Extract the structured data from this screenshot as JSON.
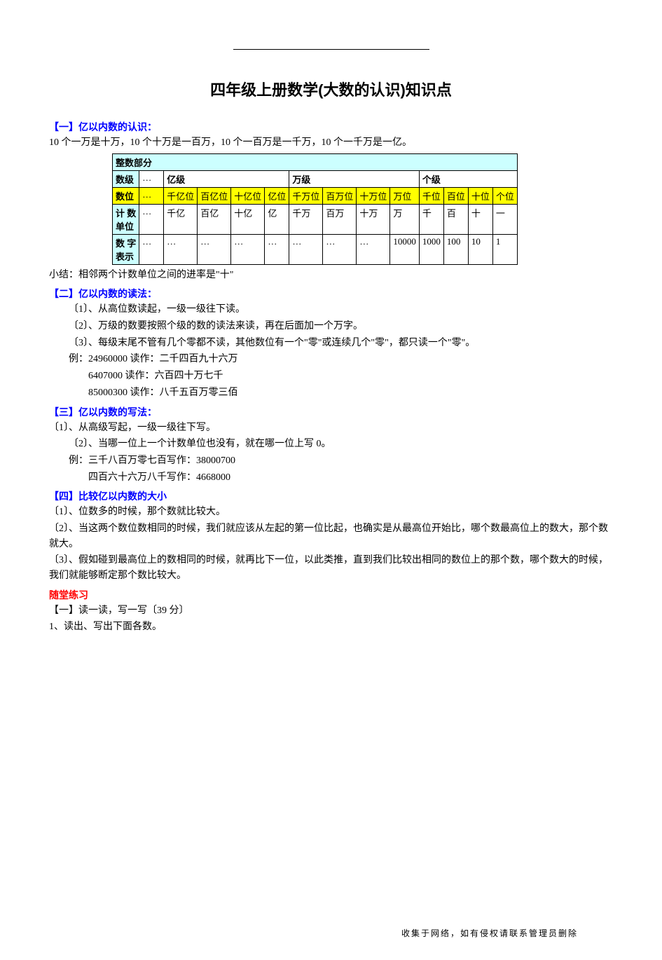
{
  "title": "四年级上册数学(大数的认识)知识点",
  "s1": {
    "head": "【一】亿以内数的认识：",
    "intro": "10 个一万是十万，10 个十万是一百万，10 个一百万是一千万，10 个一千万是一亿。",
    "table": {
      "top_header": "整数部分",
      "row1_label": "数级",
      "row1_yi": "亿级",
      "row1_wan": "万级",
      "row1_ge": "个级",
      "row2_label": "数位",
      "row2_cells": [
        "千亿位",
        "百亿位",
        "十亿位",
        "亿位",
        "千万位",
        "百万位",
        "十万位",
        "万位",
        "千位",
        "百位",
        "十位",
        "个位"
      ],
      "row3_label": "计 数\n单位",
      "row3_cells": [
        "千亿",
        "百亿",
        "十亿",
        "亿",
        "千万",
        "百万",
        "十万",
        "万",
        "千",
        "百",
        "十",
        "一"
      ],
      "row4_label": "数 字\n表示",
      "row4_cells": [
        "…",
        "…",
        "…",
        "…",
        "…",
        "…",
        "…",
        "10000",
        "1000",
        "100",
        "10",
        "1"
      ],
      "ellipsis": "…"
    },
    "summary": "小结：相邻两个计数单位之间的进率是\"十\""
  },
  "s2": {
    "head": "【二】亿以内数的读法：",
    "l1": "〔1〕、从高位数读起，一级一级往下读。",
    "l2": "〔2〕、万级的数要按照个级的数的读法来读，再在后面加一个万字。",
    "l3": "〔3〕、每级末尾不管有几个零都不读，其他数位有一个\"零\"或连续几个\"零\"，都只读一个\"零\"。",
    "ex_label": "例：",
    "ex1": "24960000 读作：二千四百九十六万",
    "ex2": "6407000 读作：六百四十万七千",
    "ex3": "85000300 读作：八千五百万零三佰"
  },
  "s3": {
    "head": "【三】亿以内数的写法：",
    "l1": "〔1〕、从高级写起，一级一级往下写。",
    "l2": "〔2〕、当哪一位上一个计数单位也没有，就在哪一位上写 0。",
    "ex_label": "例：",
    "ex1": "三千八百万零七百写作：38000700",
    "ex2": "四百六十六万八千写作：4668000"
  },
  "s4": {
    "head": "【四】比较亿以内数的大小",
    "l1": "〔1〕、位数多的时候，那个数就比较大。",
    "l2": "〔2〕、当这两个数位数相同的时候，我们就应该从左起的第一位比起，也确实是从最高位开始比，哪个数最高位上的数大，那个数就大。",
    "l3": "〔3〕、假如碰到最高位上的数相同的时候，就再比下一位，以此类推，直到我们比较出相同的数位上的那个数，哪个数大的时候，我们就能够断定那个数比较大。"
  },
  "practice": {
    "head": "随堂练习",
    "l1": "【一】读一读，写一写〔39 分〕",
    "l2": "1、读出、写出下面各数。"
  },
  "footer": "收集于网络，如有侵权请联系管理员删除"
}
